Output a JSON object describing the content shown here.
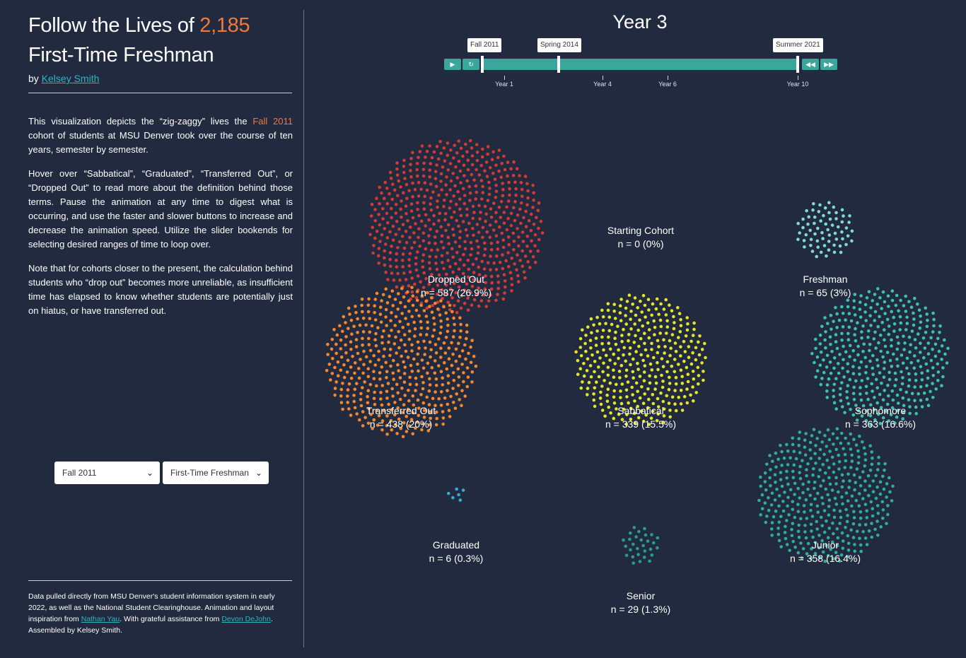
{
  "title": {
    "prefix": "Follow the Lives of ",
    "count": "2,185",
    "line2": "First-Time Freshman"
  },
  "byline": {
    "prefix": "by ",
    "author": "Kelsey Smith"
  },
  "intro": {
    "p1_before": "This visualization depicts the “zig-zaggy” lives the ",
    "p1_term": "Fall 2011",
    "p1_after": " cohort of students at MSU Denver took over the course of ten years, semester by semester.",
    "p2": "Hover over “Sabbatical”, “Graduated”, “Transferred Out”, or “Dropped Out” to read more about the definition behind those terms. Pause the animation at any time to digest what is occurring, and use the faster and slower buttons to increase and decrease the animation speed. Utilize the slider bookends for selecting desired ranges of time to loop over.",
    "p3": "Note that for cohorts closer to the present, the calculation behind students who “drop out” becomes more unreliable, as insufficient time has elapsed to know whether students are potentially just on hiatus, or have transferred out."
  },
  "selects": {
    "term": "Fall 2011",
    "type": "First-Time Freshman"
  },
  "footer": {
    "text1": "Data pulled directly from MSU Denver's student information system in early 2022, as well as the National Student Clearinghouse. Animation and layout inspiration from ",
    "link1": "Nathan Yau",
    "text2": ". With grateful assistance from ",
    "link2": "Devon DeJohn",
    "text3": ". Assembled by Kelsey Smith."
  },
  "timeline": {
    "current_label": "Year 3",
    "start_label": "Fall 2011",
    "current_term": "Spring 2014",
    "end_label": "Summer 2021",
    "ticks": [
      "Year 1",
      "Year 4",
      "Year 6",
      "Year 10"
    ],
    "buttons": {
      "play": "▶",
      "restart": "↻",
      "slower": "◀◀",
      "faster": "▶▶"
    }
  },
  "groups": [
    {
      "id": "dropped",
      "name": "Dropped Out",
      "n": 587,
      "pct": "26.9%",
      "count_text": "n = 587 (26.9%)",
      "color": "#d23a36"
    },
    {
      "id": "cohort",
      "name": "Starting Cohort",
      "n": 0,
      "pct": "0%",
      "count_text": "n = 0 (0%)",
      "color": "#ffffff"
    },
    {
      "id": "freshman",
      "name": "Freshman",
      "n": 65,
      "pct": "3%",
      "count_text": "n = 65 (3%)",
      "color": "#7fdccc"
    },
    {
      "id": "transferred",
      "name": "Transferred Out",
      "n": 438,
      "pct": "20%",
      "count_text": "n = 438 (20%)",
      "color": "#f2872d"
    },
    {
      "id": "sabbatical",
      "name": "Sabbatical",
      "n": 339,
      "pct": "15.5%",
      "count_text": "n = 339 (15.5%)",
      "color": "#e4e42a"
    },
    {
      "id": "sophomore",
      "name": "Sophomore",
      "n": 363,
      "pct": "16.6%",
      "count_text": "n = 363 (16.6%)",
      "color": "#3cc3a6"
    },
    {
      "id": "graduated",
      "name": "Graduated",
      "n": 6,
      "pct": "0.3%",
      "count_text": "n = 6 (0.3%)",
      "color": "#3aa8d8"
    },
    {
      "id": "senior",
      "name": "Senior",
      "n": 29,
      "pct": "1.3%",
      "count_text": "n = 29 (1.3%)",
      "color": "#2a9d8a"
    },
    {
      "id": "junior",
      "name": "Junior",
      "n": 358,
      "pct": "16.4%",
      "count_text": "n = 358 (16.4%)",
      "color": "#2fae94"
    }
  ]
}
